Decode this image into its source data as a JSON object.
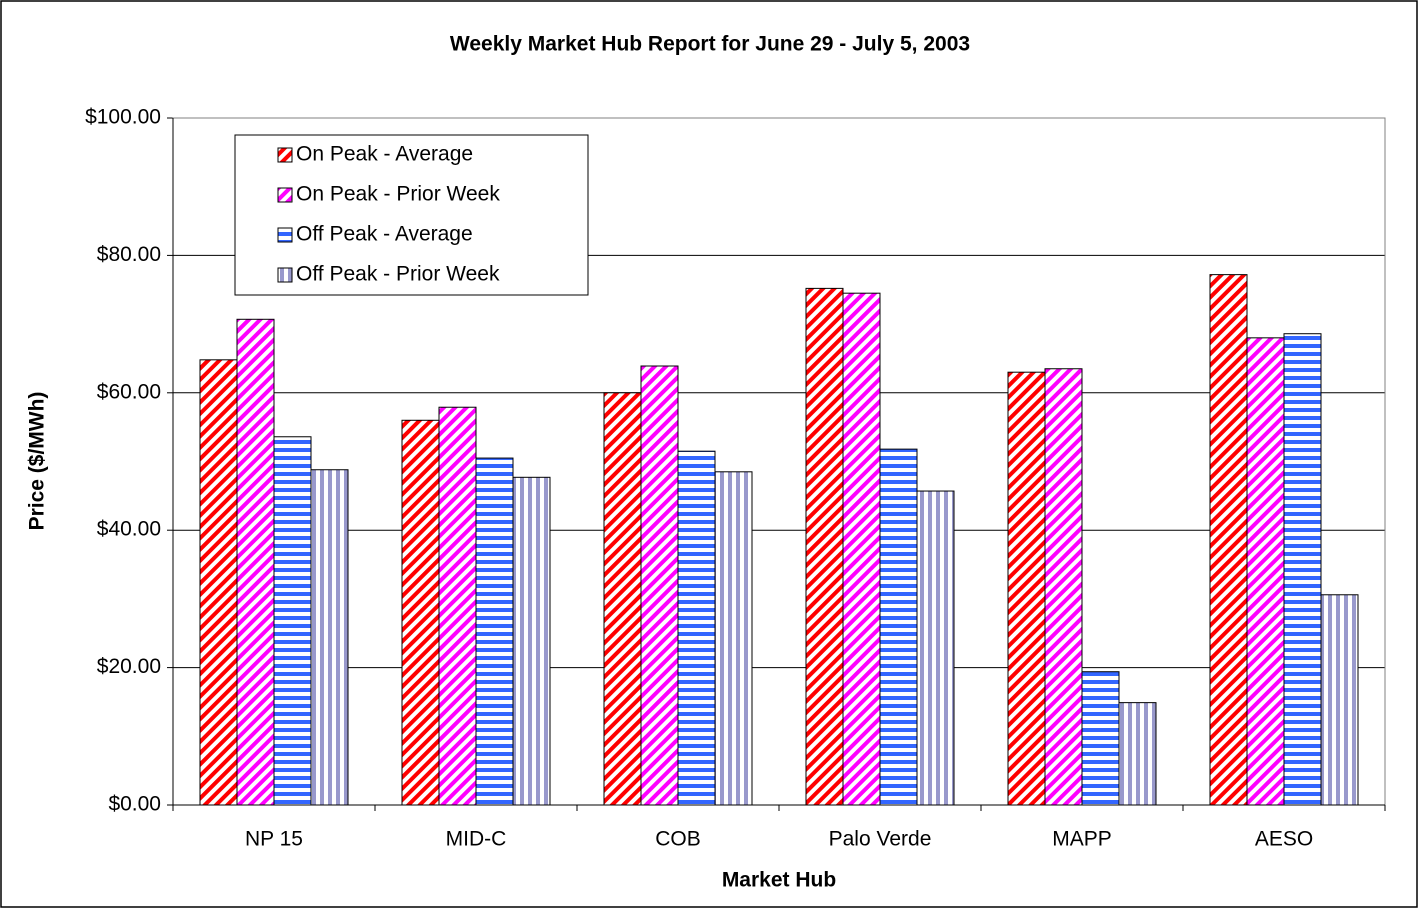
{
  "chart_data": {
    "type": "bar",
    "title": "Weekly Market Hub Report for June 29 - July 5,  2003",
    "x_label": "Market Hub",
    "y_label": "Price ($/MWh)",
    "categories": [
      "NP 15",
      "MID-C",
      "COB",
      "Palo Verde",
      "MAPP",
      "AESO"
    ],
    "series": [
      {
        "name": "On Peak - Average",
        "color": "#ff0000",
        "values": [
          64.8,
          56.0,
          60.0,
          75.2,
          63.0,
          77.2
        ]
      },
      {
        "name": "On Peak - Prior Week",
        "color": "#ff00ff",
        "values": [
          70.7,
          57.9,
          63.9,
          74.5,
          63.5,
          68.0
        ]
      },
      {
        "name": "Off Peak - Average",
        "color": "#3366ff",
        "values": [
          53.6,
          50.5,
          51.5,
          51.8,
          19.4,
          68.6
        ]
      },
      {
        "name": "Off Peak - Prior Week",
        "color": "#9999cc",
        "values": [
          48.8,
          47.7,
          48.5,
          45.7,
          14.9,
          30.6
        ]
      }
    ],
    "ylim": [
      0,
      100
    ],
    "yticks": [
      {
        "value": 0,
        "label": "$0.00"
      },
      {
        "value": 20,
        "label": "$20.00"
      },
      {
        "value": 40,
        "label": "$40.00"
      },
      {
        "value": 60,
        "label": "$60.00"
      },
      {
        "value": 80,
        "label": "$80.00"
      },
      {
        "value": 100,
        "label": "$100.00"
      }
    ],
    "grid": true,
    "legend": "upper-left"
  }
}
